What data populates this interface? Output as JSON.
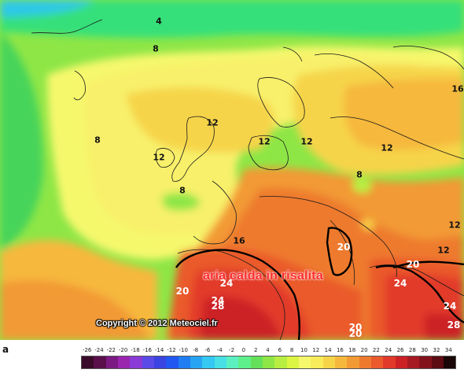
{
  "overlay_text": "aria calda in risalita",
  "copyright": "Copyright © 2012 Meteociel.fr",
  "legend": {
    "letter": "a",
    "ticks": [
      "-26",
      "-24",
      "-22",
      "-20",
      "-18",
      "-16",
      "-14",
      "-12",
      "-10",
      "-8",
      "-6",
      "-4",
      "-2",
      "0",
      "2",
      "4",
      "6",
      "8",
      "10",
      "12",
      "14",
      "16",
      "18",
      "20",
      "22",
      "24",
      "26",
      "28",
      "30",
      "32",
      "34"
    ],
    "colors": [
      "#3a0a2a",
      "#5a0f4a",
      "#7a1a82",
      "#9a26b0",
      "#8a3ad6",
      "#5a4ae8",
      "#3a44e0",
      "#2258f2",
      "#1e7ef2",
      "#28a4f4",
      "#34c8f2",
      "#48e0e4",
      "#5cf0c0",
      "#5ef08a",
      "#64e05a",
      "#8ee646",
      "#b8ee42",
      "#dcf442",
      "#f6f86c",
      "#f8ec5a",
      "#f6d448",
      "#f6b83c",
      "#f29a34",
      "#ee7a2e",
      "#ea5a2c",
      "#e23a2a",
      "#cc2226",
      "#a81a22",
      "#84121c",
      "#5c0c12",
      "#1a0606"
    ]
  },
  "contour_labels": [
    {
      "text": "4",
      "color": "dark"
    },
    {
      "text": "8",
      "color": "dark"
    },
    {
      "text": "8",
      "color": "dark"
    },
    {
      "text": "8",
      "color": "dark"
    },
    {
      "text": "8",
      "color": "dark"
    },
    {
      "text": "12",
      "color": "dark"
    },
    {
      "text": "12",
      "color": "dark"
    },
    {
      "text": "12",
      "color": "dark"
    },
    {
      "text": "12",
      "color": "dark"
    },
    {
      "text": "12",
      "color": "dark"
    },
    {
      "text": "12",
      "color": "dark"
    },
    {
      "text": "12",
      "color": "dark"
    },
    {
      "text": "16",
      "color": "dark"
    },
    {
      "text": "16",
      "color": "dark"
    },
    {
      "text": "20",
      "color": "light"
    },
    {
      "text": "20",
      "color": "light"
    },
    {
      "text": "20",
      "color": "light"
    },
    {
      "text": "20",
      "color": "light"
    },
    {
      "text": "20",
      "color": "light"
    },
    {
      "text": "24",
      "color": "light"
    },
    {
      "text": "24",
      "color": "light"
    },
    {
      "text": "24",
      "color": "light"
    },
    {
      "text": "24",
      "color": "light"
    },
    {
      "text": "28",
      "color": "light"
    },
    {
      "text": "28",
      "color": "light"
    }
  ]
}
